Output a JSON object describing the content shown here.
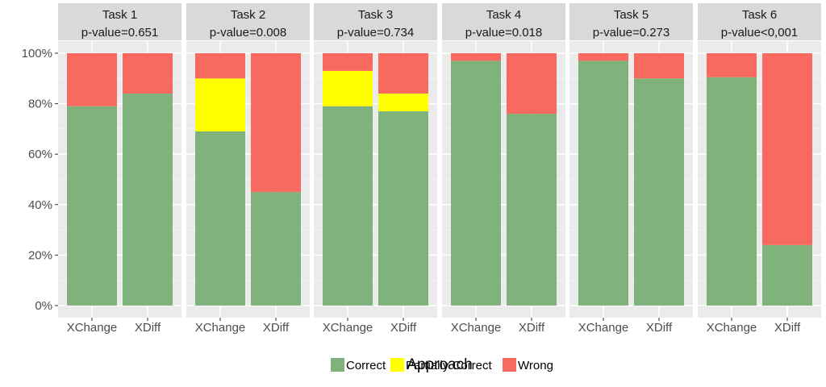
{
  "chart_data": {
    "type": "bar",
    "stacked": true,
    "xlabel": "Approach",
    "ylabel": "",
    "ylim": [
      0,
      100
    ],
    "y_ticks": [
      "0%",
      "20%",
      "40%",
      "60%",
      "80%",
      "100%"
    ],
    "categories": [
      "XChange",
      "XDiff"
    ],
    "legend": {
      "position": "bottom",
      "entries": [
        {
          "name": "Correct",
          "color": "#80b27c"
        },
        {
          "name": "Partially Correct",
          "color": "#ffff00"
        },
        {
          "name": "Wrong",
          "color": "#f8695f"
        }
      ]
    },
    "panels": [
      {
        "title": "Task 1",
        "subtitle": "p-value=0.651",
        "bars": [
          {
            "category": "XChange",
            "correct": 79,
            "partial": 0,
            "wrong": 21
          },
          {
            "category": "XDiff",
            "correct": 84,
            "partial": 0,
            "wrong": 16
          }
        ]
      },
      {
        "title": "Task 2",
        "subtitle": "p-value=0.008",
        "bars": [
          {
            "category": "XChange",
            "correct": 69,
            "partial": 21,
            "wrong": 10
          },
          {
            "category": "XDiff",
            "correct": 45,
            "partial": 0,
            "wrong": 55
          }
        ]
      },
      {
        "title": "Task 3",
        "subtitle": "p-value=0.734",
        "bars": [
          {
            "category": "XChange",
            "correct": 79,
            "partial": 14,
            "wrong": 7
          },
          {
            "category": "XDiff",
            "correct": 77,
            "partial": 7,
            "wrong": 16
          }
        ]
      },
      {
        "title": "Task 4",
        "subtitle": "p-value=0.018",
        "bars": [
          {
            "category": "XChange",
            "correct": 97,
            "partial": 0,
            "wrong": 3
          },
          {
            "category": "XDiff",
            "correct": 76,
            "partial": 0,
            "wrong": 24
          }
        ]
      },
      {
        "title": "Task 5",
        "subtitle": "p-value=0.273",
        "bars": [
          {
            "category": "XChange",
            "correct": 97,
            "partial": 0,
            "wrong": 3
          },
          {
            "category": "XDiff",
            "correct": 90,
            "partial": 0,
            "wrong": 10
          }
        ]
      },
      {
        "title": "Task 6",
        "subtitle": "p-value<0,001",
        "bars": [
          {
            "category": "XChange",
            "correct": 90.5,
            "partial": 0,
            "wrong": 9.5
          },
          {
            "category": "XDiff",
            "correct": 24,
            "partial": 0,
            "wrong": 76
          }
        ]
      }
    ],
    "colors": {
      "panel_bg": "#ebebeb",
      "strip_bg": "#d9d9d9",
      "grid_major": "#ffffff",
      "grid_minor": "#f5f5f5",
      "text": "#333333",
      "axis_text": "#4d4d4d"
    }
  }
}
